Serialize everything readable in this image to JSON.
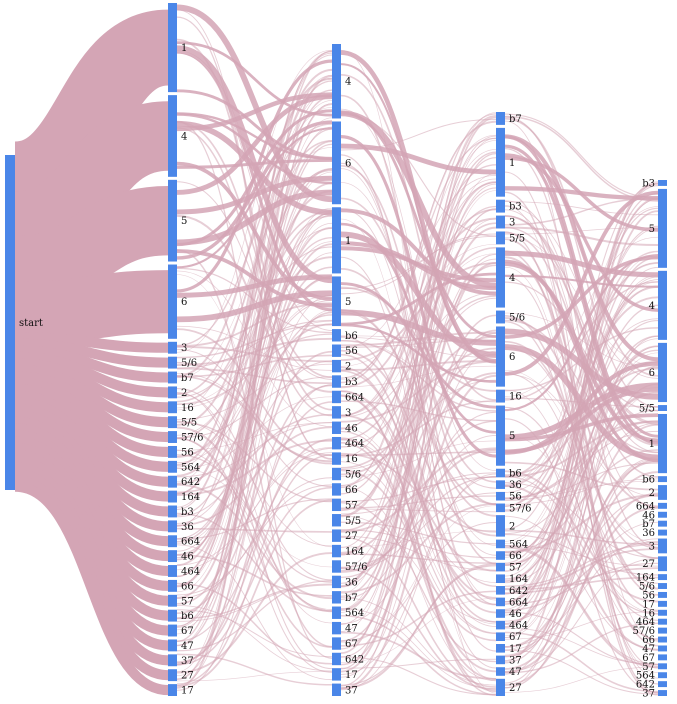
{
  "colors": {
    "node": "#4a86e8",
    "link": "#d4a5b5",
    "label": "#111111"
  },
  "diagram": {
    "type": "sankey",
    "columns": [
      {
        "nodes": [
          {
            "label": "start",
            "weight": 100
          }
        ]
      },
      {
        "nodes": [
          {
            "label": "1",
            "weight": 12
          },
          {
            "label": "4",
            "weight": 11
          },
          {
            "label": "5",
            "weight": 11
          },
          {
            "label": "6",
            "weight": 10
          },
          {
            "label": "3",
            "weight": 1.6
          },
          {
            "label": "5/6",
            "weight": 1.6
          },
          {
            "label": "b7",
            "weight": 1.6
          },
          {
            "label": "2",
            "weight": 1.6
          },
          {
            "label": "16",
            "weight": 1.6
          },
          {
            "label": "5/5",
            "weight": 1.6
          },
          {
            "label": "57/6",
            "weight": 1.6
          },
          {
            "label": "56",
            "weight": 1.6
          },
          {
            "label": "564",
            "weight": 1.6
          },
          {
            "label": "642",
            "weight": 1.6
          },
          {
            "label": "164",
            "weight": 1.6
          },
          {
            "label": "b3",
            "weight": 1.6
          },
          {
            "label": "36",
            "weight": 1.6
          },
          {
            "label": "664",
            "weight": 1.6
          },
          {
            "label": "46",
            "weight": 1.6
          },
          {
            "label": "464",
            "weight": 1.6
          },
          {
            "label": "66",
            "weight": 1.6
          },
          {
            "label": "57",
            "weight": 1.6
          },
          {
            "label": "b6",
            "weight": 1.6
          },
          {
            "label": "67",
            "weight": 1.6
          },
          {
            "label": "47",
            "weight": 1.6
          },
          {
            "label": "37",
            "weight": 1.6
          },
          {
            "label": "27",
            "weight": 1.6
          },
          {
            "label": "17",
            "weight": 1.6
          }
        ]
      },
      {
        "nodes": [
          {
            "label": "4",
            "weight": 9
          },
          {
            "label": "6",
            "weight": 10
          },
          {
            "label": "1",
            "weight": 8
          },
          {
            "label": "5",
            "weight": 6
          },
          {
            "label": "b6",
            "weight": 1.5
          },
          {
            "label": "56",
            "weight": 1.5
          },
          {
            "label": "2",
            "weight": 1.5
          },
          {
            "label": "b3",
            "weight": 1.5
          },
          {
            "label": "664",
            "weight": 1.5
          },
          {
            "label": "3",
            "weight": 1.5
          },
          {
            "label": "46",
            "weight": 1.5
          },
          {
            "label": "464",
            "weight": 1.5
          },
          {
            "label": "16",
            "weight": 1.5
          },
          {
            "label": "5/6",
            "weight": 1.5
          },
          {
            "label": "66",
            "weight": 1.5
          },
          {
            "label": "57",
            "weight": 1.5
          },
          {
            "label": "5/5",
            "weight": 1.5
          },
          {
            "label": "27",
            "weight": 1.5
          },
          {
            "label": "164",
            "weight": 1.5
          },
          {
            "label": "57/6",
            "weight": 1.5
          },
          {
            "label": "36",
            "weight": 1.5
          },
          {
            "label": "b7",
            "weight": 1.5
          },
          {
            "label": "564",
            "weight": 1.5
          },
          {
            "label": "47",
            "weight": 1.5
          },
          {
            "label": "67",
            "weight": 1.5
          },
          {
            "label": "642",
            "weight": 1.5
          },
          {
            "label": "17",
            "weight": 1.5
          },
          {
            "label": "37",
            "weight": 1.5
          }
        ]
      },
      {
        "nodes": [
          {
            "label": "b7",
            "weight": 1.5
          },
          {
            "label": "1",
            "weight": 8
          },
          {
            "label": "b3",
            "weight": 1.5
          },
          {
            "label": "3",
            "weight": 1.5
          },
          {
            "label": "5/5",
            "weight": 1.5
          },
          {
            "label": "4",
            "weight": 7
          },
          {
            "label": "5/6",
            "weight": 1.5
          },
          {
            "label": "6",
            "weight": 7
          },
          {
            "label": "16",
            "weight": 1.5
          },
          {
            "label": "5",
            "weight": 7
          },
          {
            "label": "b6",
            "weight": 1
          },
          {
            "label": "36",
            "weight": 1
          },
          {
            "label": "56",
            "weight": 1
          },
          {
            "label": "57/6",
            "weight": 1
          },
          {
            "label": "2",
            "weight": 2.5
          },
          {
            "label": "564",
            "weight": 1
          },
          {
            "label": "66",
            "weight": 1
          },
          {
            "label": "57",
            "weight": 1
          },
          {
            "label": "164",
            "weight": 1
          },
          {
            "label": "642",
            "weight": 1
          },
          {
            "label": "664",
            "weight": 1
          },
          {
            "label": "46",
            "weight": 1
          },
          {
            "label": "464",
            "weight": 1
          },
          {
            "label": "67",
            "weight": 1
          },
          {
            "label": "17",
            "weight": 1
          },
          {
            "label": "37",
            "weight": 1
          },
          {
            "label": "47",
            "weight": 1
          },
          {
            "label": "27",
            "weight": 2
          }
        ]
      },
      {
        "nodes": [
          {
            "label": "b3",
            "weight": 0.6
          },
          {
            "label": "5",
            "weight": 8
          },
          {
            "label": "4",
            "weight": 7
          },
          {
            "label": "6",
            "weight": 6
          },
          {
            "label": "5/5",
            "weight": 0.6
          },
          {
            "label": "1",
            "weight": 6
          },
          {
            "label": "b6",
            "weight": 0.6
          },
          {
            "label": "2",
            "weight": 1.5
          },
          {
            "label": "664",
            "weight": 0.6
          },
          {
            "label": "46",
            "weight": 0.6
          },
          {
            "label": "b7",
            "weight": 0.6
          },
          {
            "label": "36",
            "weight": 0.6
          },
          {
            "label": "3",
            "weight": 1.5
          },
          {
            "label": "27",
            "weight": 1.5
          },
          {
            "label": "164",
            "weight": 0.6
          },
          {
            "label": "5/6",
            "weight": 0.6
          },
          {
            "label": "56",
            "weight": 0.6
          },
          {
            "label": "17",
            "weight": 0.6
          },
          {
            "label": "16",
            "weight": 0.6
          },
          {
            "label": "464",
            "weight": 0.6
          },
          {
            "label": "57/6",
            "weight": 0.6
          },
          {
            "label": "66",
            "weight": 0.6
          },
          {
            "label": "47",
            "weight": 0.6
          },
          {
            "label": "67",
            "weight": 0.6
          },
          {
            "label": "57",
            "weight": 0.6
          },
          {
            "label": "564",
            "weight": 0.6
          },
          {
            "label": "642",
            "weight": 0.6
          },
          {
            "label": "37",
            "weight": 0.6
          }
        ]
      }
    ]
  }
}
